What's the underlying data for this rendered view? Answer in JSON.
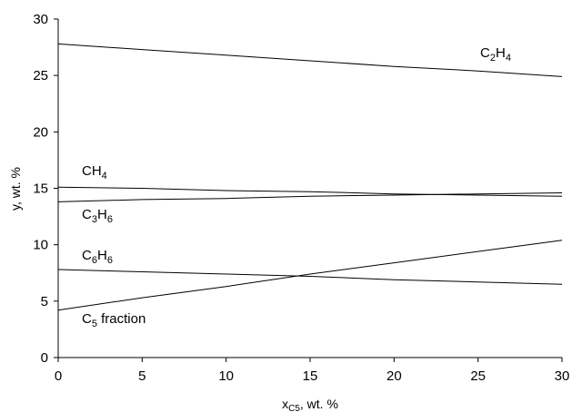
{
  "chart_data": {
    "type": "line",
    "xlabel": {
      "main": "x",
      "sub": "C5",
      "rest": ", wt. %"
    },
    "ylabel": "y, wt. %",
    "xlim": [
      0,
      30
    ],
    "ylim": [
      0,
      30
    ],
    "xticks": [
      "0",
      "5",
      "10",
      "15",
      "20",
      "25",
      "30"
    ],
    "yticks": [
      "0",
      "5",
      "10",
      "15",
      "20",
      "25",
      "30"
    ],
    "grid": false,
    "x": [
      0,
      5,
      10,
      15,
      20,
      25,
      30
    ],
    "series": [
      {
        "key": "c2h4",
        "name": {
          "main": "C",
          "sub1": "2",
          "mid": "H",
          "sub2": "4"
        },
        "values": [
          27.8,
          27.3,
          26.8,
          26.3,
          25.8,
          25.4,
          24.9
        ]
      },
      {
        "key": "ch4",
        "name": {
          "main": "CH",
          "sub1": "4",
          "mid": "",
          "sub2": ""
        },
        "values": [
          15.1,
          15.0,
          14.8,
          14.7,
          14.5,
          14.4,
          14.3
        ]
      },
      {
        "key": "c3h6",
        "name": {
          "main": "C",
          "sub1": "3",
          "mid": "H",
          "sub2": "6"
        },
        "values": [
          13.8,
          14.0,
          14.1,
          14.3,
          14.4,
          14.5,
          14.6
        ]
      },
      {
        "key": "c6h6",
        "name": {
          "main": "C",
          "sub1": "6",
          "mid": "H",
          "sub2": "6"
        },
        "values": [
          7.8,
          7.6,
          7.4,
          7.2,
          6.9,
          6.7,
          6.5
        ]
      },
      {
        "key": "c5",
        "name": {
          "main": "C",
          "sub1": "5",
          "mid": " fraction",
          "sub2": ""
        },
        "values": [
          4.2,
          5.3,
          6.3,
          7.4,
          8.4,
          9.4,
          10.4
        ]
      }
    ]
  }
}
